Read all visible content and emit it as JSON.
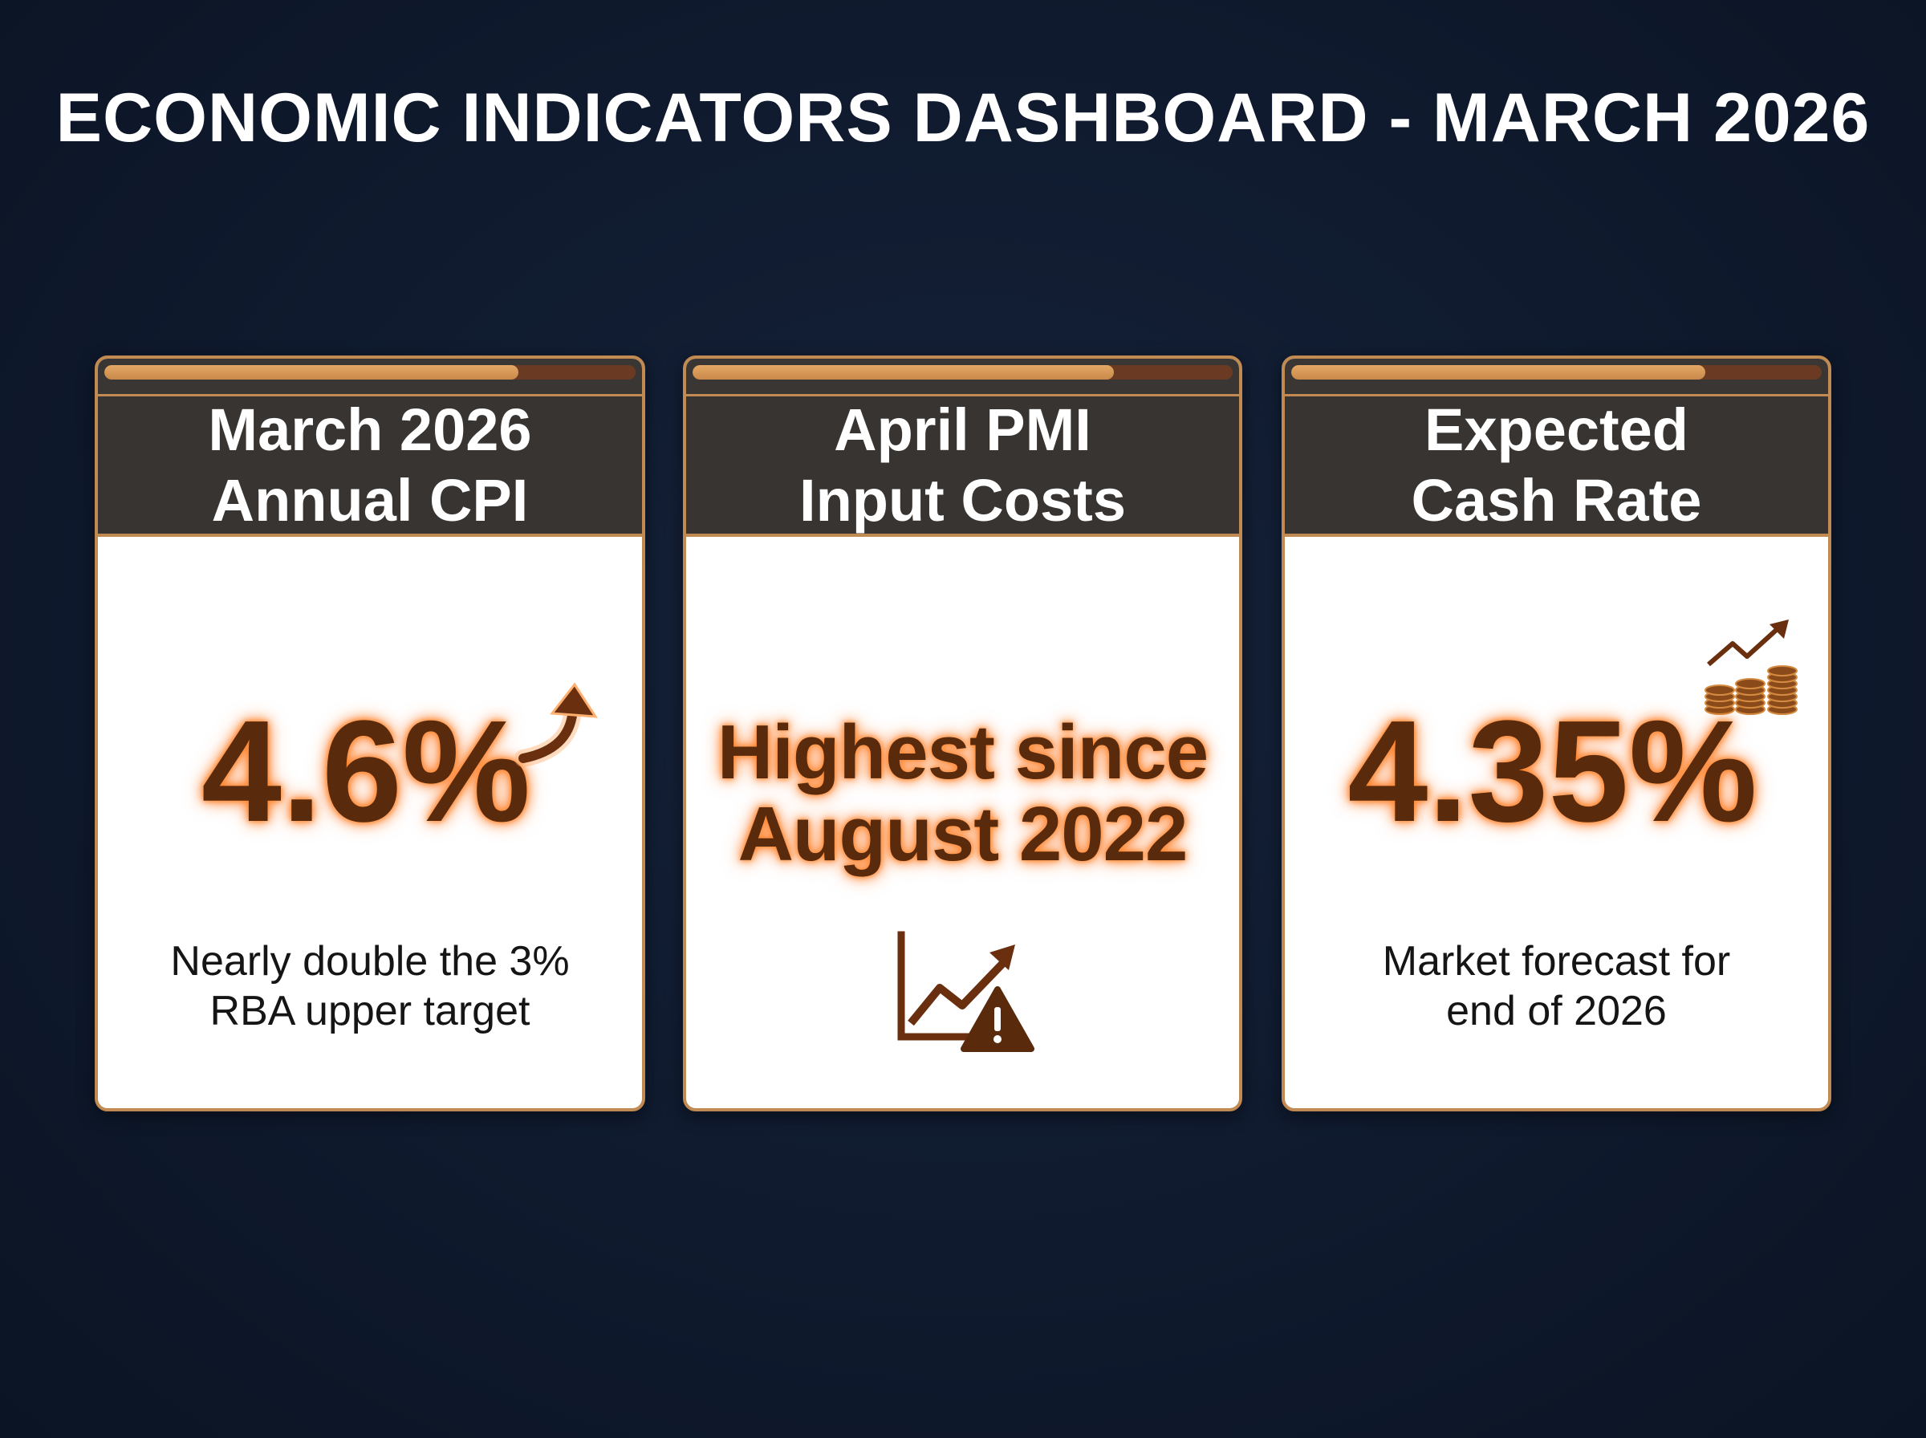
{
  "page": {
    "title": "ECONOMIC INDICATORS DASHBOARD - MARCH 2026"
  },
  "colors": {
    "accent": "#c08a52",
    "value_text": "#5a2a0c",
    "glow": "#ff7a20",
    "header_bg": "#383431",
    "background": "#0f1a2e"
  },
  "cards": [
    {
      "title_line1": "March 2026",
      "title_line2": "Annual CPI",
      "value": "4.6%",
      "description_line1": "Nearly double the 3%",
      "description_line2": "RBA upper target",
      "icon": "trend-up-arrow-icon",
      "progress_fraction": 0.78
    },
    {
      "title_line1": "April PMI",
      "title_line2": "Input Costs",
      "value_line1": "Highest since",
      "value_line2": "August 2022",
      "icon": "chart-warning-icon",
      "progress_fraction": 0.78
    },
    {
      "title_line1": "Expected",
      "title_line2": "Cash Rate",
      "value": "4.35%",
      "description_line1": "Market forecast for",
      "description_line2": "end of 2026",
      "icon": "coins-growth-icon",
      "progress_fraction": 0.78
    }
  ]
}
